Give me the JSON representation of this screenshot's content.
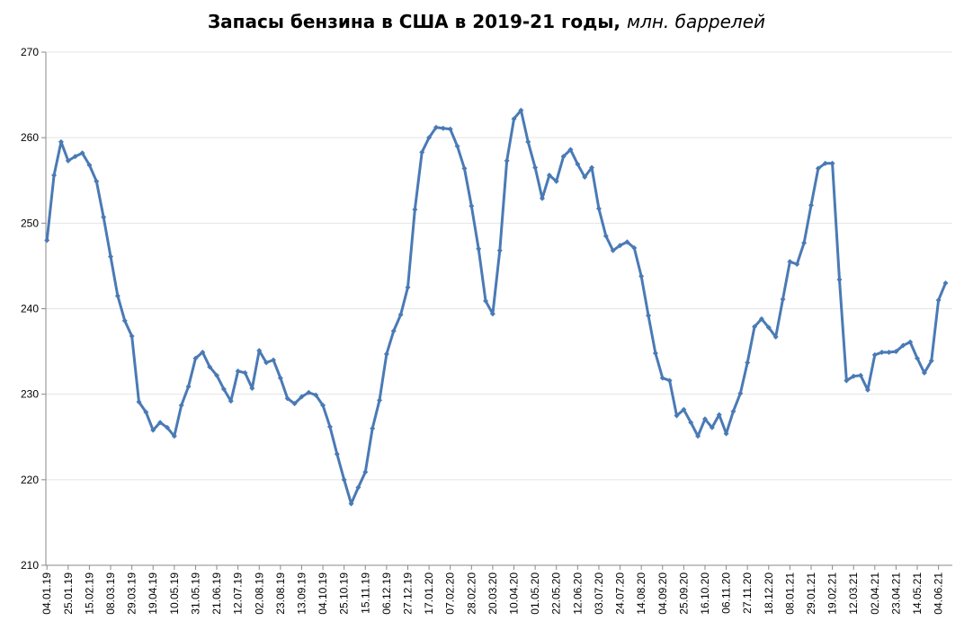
{
  "chart_data": {
    "type": "line",
    "title": "Запасы бензина в США в 2019-21 годы,",
    "title_suffix": "млн. баррелей",
    "xlabel": "",
    "ylabel": "",
    "ylim": [
      210,
      270
    ],
    "y_ticks": [
      210,
      220,
      230,
      240,
      250,
      260,
      270
    ],
    "grid": "horizontal",
    "legend": "none",
    "color": "#4a7ab5",
    "x_tick_labels": [
      "04.01.19",
      "25.01.19",
      "15.02.19",
      "08.03.19",
      "29.03.19",
      "19.04.19",
      "10.05.19",
      "31.05.19",
      "21.06.19",
      "12.07.19",
      "02.08.19",
      "23.08.19",
      "13.09.19",
      "04.10.19",
      "25.10.19",
      "15.11.19",
      "06.12.19",
      "27.12.19",
      "17.01.20",
      "07.02.20",
      "28.02.20",
      "20.03.20",
      "10.04.20",
      "01.05.20",
      "22.05.20",
      "12.06.20",
      "03.07.20",
      "24.07.20",
      "14.08.20",
      "04.09.20",
      "25.09.20",
      "16.10.20",
      "06.11.20",
      "27.11.20",
      "18.12.20",
      "08.01.21",
      "29.01.21",
      "19.02.21",
      "12.03.21",
      "02.04.21",
      "23.04.21",
      "14.05.21",
      "04.06.21"
    ],
    "values": [
      248.0,
      255.6,
      259.5,
      257.3,
      257.8,
      258.2,
      256.8,
      254.9,
      250.7,
      246.1,
      241.5,
      238.6,
      236.8,
      229.1,
      227.9,
      225.8,
      226.7,
      226.1,
      225.1,
      228.7,
      230.9,
      234.2,
      234.9,
      233.2,
      232.2,
      230.6,
      229.2,
      232.7,
      232.5,
      230.7,
      235.1,
      233.7,
      234.0,
      231.9,
      229.5,
      228.9,
      229.7,
      230.2,
      229.9,
      228.7,
      226.2,
      223.0,
      220.0,
      217.2,
      219.1,
      220.9,
      226.0,
      229.3,
      234.7,
      237.4,
      239.3,
      242.5,
      251.6,
      258.3,
      260.0,
      261.2,
      261.1,
      261.0,
      259.0,
      256.4,
      252.0,
      247.0,
      240.9,
      239.4,
      246.8,
      257.3,
      262.2,
      263.2,
      259.5,
      256.5,
      252.9,
      255.6,
      254.9,
      257.8,
      258.6,
      256.9,
      255.4,
      256.5,
      251.7,
      248.5,
      246.8,
      247.4,
      247.8,
      247.1,
      243.8,
      239.2,
      234.8,
      231.9,
      231.6,
      227.5,
      228.2,
      226.7,
      225.1,
      227.1,
      226.1,
      227.6,
      225.4,
      228.0,
      230.1,
      233.7,
      237.9,
      238.8,
      237.8,
      236.7,
      241.1,
      245.5,
      245.2,
      247.7,
      252.1,
      256.4,
      257.0,
      257.0,
      243.4,
      231.6,
      232.1,
      232.2,
      230.5,
      234.6,
      234.9,
      234.9,
      235.0,
      235.7,
      236.1,
      234.2,
      232.5,
      233.9,
      241.0,
      243.0
    ]
  }
}
